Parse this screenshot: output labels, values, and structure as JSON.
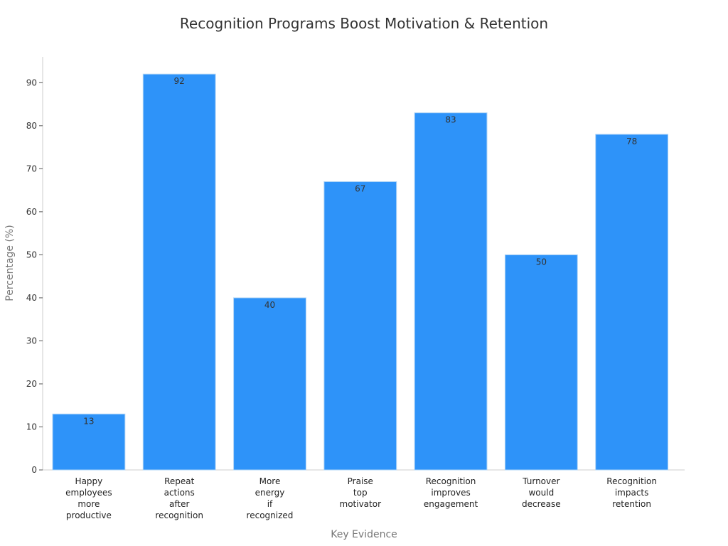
{
  "chart_data": {
    "type": "bar",
    "title": "Recognition Programs Boost Motivation & Retention",
    "xlabel": "Key Evidence",
    "ylabel": "Percentage (%)",
    "categories": [
      "Happy employees more productive",
      "Repeat actions after recognition",
      "More energy if recognized",
      "Praise top motivator",
      "Recognition improves engagement",
      "Turnover would decrease",
      "Recognition impacts retention"
    ],
    "values": [
      13,
      92,
      40,
      67,
      83,
      50,
      78
    ],
    "ylim": [
      0,
      96
    ],
    "yticks": [
      0,
      10,
      20,
      30,
      40,
      50,
      60,
      70,
      80,
      90
    ],
    "grid": false,
    "legend": "none",
    "colors": {
      "bar": "#2e93f9",
      "bar_edge": "#aed3f5",
      "axis": "#cccccc",
      "text": "#333333",
      "axis_title": "#777777"
    }
  }
}
